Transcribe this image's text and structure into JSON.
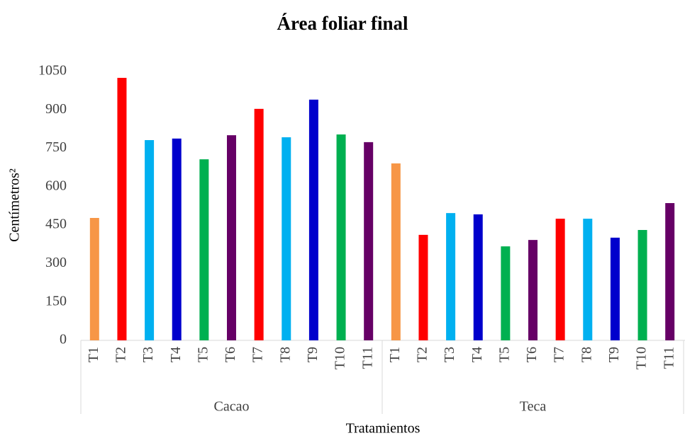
{
  "chart_data": {
    "type": "bar",
    "title": "Área foliar final",
    "y_label": "Centímetros²",
    "x_label": "Tratamientos",
    "groups": [
      {
        "name": "Cacao",
        "categories": [
          "T1",
          "T2",
          "T3",
          "T4",
          "T5",
          "T6",
          "T7",
          "T8",
          "T9",
          "T10",
          "T11"
        ],
        "values": [
          478,
          1025,
          782,
          788,
          707,
          801,
          904,
          793,
          940,
          804,
          774
        ]
      },
      {
        "name": "Teca",
        "categories": [
          "T1",
          "T2",
          "T3",
          "T4",
          "T5",
          "T6",
          "T7",
          "T8",
          "T9",
          "T10",
          "T11"
        ],
        "values": [
          691,
          412,
          497,
          492,
          367,
          392,
          475,
          475,
          401,
          431,
          536
        ]
      }
    ],
    "colors": [
      "#f79646",
      "#ff0000",
      "#00b0f0",
      "#0000cc",
      "#00b050",
      "#660066",
      "#ff0000",
      "#00b0f0",
      "#0000cc",
      "#00b050",
      "#660066"
    ],
    "ylim": [
      0,
      1050
    ],
    "yticks": [
      0,
      150,
      300,
      450,
      600,
      750,
      900,
      1050
    ],
    "grid": false
  }
}
